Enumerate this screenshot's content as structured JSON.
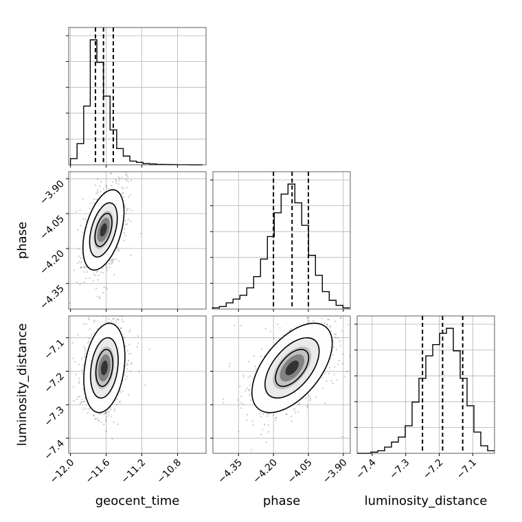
{
  "chart_data": {
    "type": "corner",
    "parameters": [
      "geocent_time",
      "phase",
      "luminosity_distance"
    ],
    "axis_labels": {
      "geocent_time": "geocent_time",
      "phase": "phase",
      "luminosity_distance": "luminosity_distance"
    },
    "ranges": {
      "geocent_time": [
        -12.02,
        -10.48
      ],
      "phase": [
        -4.46,
        -3.87
      ],
      "luminosity_distance": [
        -7.445,
        -7.035
      ]
    },
    "ticks": {
      "geocent_time": {
        "values": [
          -12.0,
          -11.6,
          -11.2,
          -10.8
        ],
        "labels": [
          "−12.0",
          "−11.6",
          "−11.2",
          "−10.8"
        ]
      },
      "phase": {
        "values": [
          -4.35,
          -4.2,
          -4.05,
          -3.9
        ],
        "labels": [
          "−4.35",
          "−4.20",
          "−4.05",
          "−3.90"
        ]
      },
      "luminosity_distance": {
        "values": [
          -7.4,
          -7.3,
          -7.2,
          -7.1
        ],
        "labels": [
          "−7.4",
          "−7.3",
          "−7.2",
          "−7.1"
        ]
      }
    },
    "histograms": {
      "geocent_time": {
        "bin_start": -12.0,
        "bin_width": 0.074,
        "counts": [
          0.05,
          0.17,
          0.47,
          1.0,
          0.82,
          0.55,
          0.28,
          0.13,
          0.07,
          0.03,
          0.02,
          0.01,
          0.007,
          0.004,
          0.003,
          0.002,
          0.001,
          0.001,
          0.0,
          0.0
        ],
        "quantiles": [
          -11.72,
          -11.63,
          -11.52
        ]
      },
      "phase": {
        "bin_start": -4.462,
        "bin_width": 0.0295,
        "counts": [
          0.01,
          0.02,
          0.05,
          0.08,
          0.11,
          0.17,
          0.26,
          0.4,
          0.58,
          0.77,
          0.92,
          1.0,
          0.85,
          0.67,
          0.43,
          0.27,
          0.14,
          0.07,
          0.03,
          0.01
        ],
        "quantiles": [
          -4.2,
          -4.12,
          -4.05
        ]
      },
      "luminosity_distance": {
        "bin_start": -7.445,
        "bin_width": 0.0205,
        "counts": [
          0.0,
          0.0,
          0.01,
          0.02,
          0.05,
          0.09,
          0.13,
          0.22,
          0.41,
          0.6,
          0.78,
          0.87,
          0.96,
          1.0,
          0.82,
          0.6,
          0.38,
          0.17,
          0.06,
          0.02
        ],
        "quantiles": [
          -7.25,
          -7.19,
          -7.13
        ]
      }
    },
    "scatter_2d": [
      {
        "x": "geocent_time",
        "y": "phase",
        "mean": [
          -11.63,
          -4.12
        ],
        "sd": [
          0.1,
          0.075
        ],
        "rho": 0.45
      },
      {
        "x": "geocent_time",
        "y": "luminosity_distance",
        "mean": [
          -11.62,
          -7.19
        ],
        "sd": [
          0.1,
          0.058
        ],
        "rho": 0.25
      },
      {
        "x": "phase",
        "y": "luminosity_distance",
        "mean": [
          -4.12,
          -7.19
        ],
        "sd": [
          0.075,
          0.058
        ],
        "rho": 0.55
      }
    ],
    "grid": true
  }
}
